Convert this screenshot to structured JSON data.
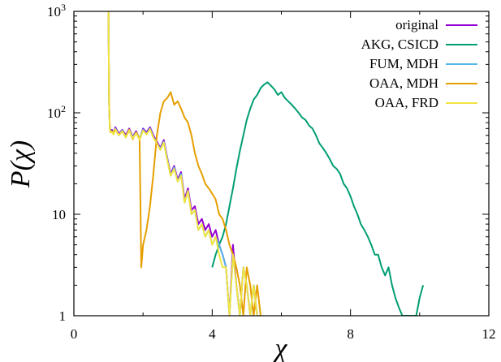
{
  "chart_data": {
    "type": "line",
    "xlabel": "χ",
    "ylabel": "P(χ)",
    "xscale": "linear",
    "yscale": "log",
    "xlim": [
      0,
      12
    ],
    "ylim": [
      1,
      1000
    ],
    "xticks": [
      0,
      4,
      8,
      12
    ],
    "xtick_labels": [
      "0",
      "4",
      "8",
      "12"
    ],
    "yticks": [
      1,
      10,
      100,
      1000
    ],
    "ytick_labels": [
      "1",
      "10",
      "10²",
      "10³"
    ],
    "grid": false,
    "legend": "top-right",
    "series": [
      {
        "name": "original",
        "color": "#9400D3",
        "x": [
          1.0,
          1.02,
          1.04,
          1.06,
          1.1,
          1.15,
          1.2,
          1.3,
          1.4,
          1.5,
          1.6,
          1.7,
          1.8,
          1.9,
          2.0,
          2.1,
          2.2,
          2.3,
          2.4,
          2.5,
          2.6,
          2.7,
          2.8,
          2.9,
          3.0,
          3.1,
          3.2,
          3.3,
          3.4,
          3.5,
          3.6,
          3.7,
          3.8,
          3.9,
          4.0,
          4.1,
          4.2,
          4.3,
          4.4,
          4.5,
          4.6,
          4.7,
          4.8,
          4.9,
          5.0,
          5.1,
          5.2,
          5.3,
          5.4
        ],
        "y": [
          1000,
          120,
          70,
          65,
          68,
          63,
          72,
          62,
          68,
          60,
          70,
          58,
          66,
          55,
          70,
          64,
          72,
          60,
          52,
          45,
          54,
          36,
          25,
          30,
          22,
          26,
          14,
          18,
          11,
          12,
          8,
          9,
          7,
          8,
          6,
          7,
          5,
          4,
          3,
          1,
          5,
          2,
          1,
          3,
          2,
          1,
          2,
          1,
          1
        ]
      },
      {
        "name": "AKG, CSICD",
        "color": "#009E73",
        "x": [
          4.0,
          4.1,
          4.2,
          4.3,
          4.4,
          4.5,
          4.6,
          4.7,
          4.8,
          4.9,
          5.0,
          5.1,
          5.2,
          5.3,
          5.4,
          5.5,
          5.6,
          5.7,
          5.8,
          5.9,
          6.0,
          6.1,
          6.2,
          6.3,
          6.4,
          6.5,
          6.6,
          6.7,
          6.8,
          6.9,
          7.0,
          7.1,
          7.2,
          7.3,
          7.4,
          7.5,
          7.6,
          7.7,
          7.8,
          7.9,
          8.0,
          8.1,
          8.2,
          8.3,
          8.4,
          8.5,
          8.6,
          8.7,
          8.8,
          8.9,
          9.0,
          9.1,
          9.2,
          9.3,
          9.4,
          9.5,
          9.6,
          9.7,
          9.8,
          9.9,
          10.0,
          10.1
        ],
        "y": [
          3,
          4,
          5,
          6,
          8,
          12,
          18,
          28,
          42,
          60,
          85,
          110,
          135,
          150,
          175,
          190,
          200,
          185,
          170,
          150,
          160,
          140,
          130,
          120,
          110,
          100,
          90,
          85,
          75,
          70,
          60,
          50,
          45,
          40,
          35,
          30,
          28,
          25,
          20,
          18,
          15,
          12,
          10,
          8,
          7,
          6,
          5,
          4,
          4,
          3,
          2.5,
          3,
          2,
          1.5,
          1.2,
          1,
          1,
          1,
          1,
          1,
          1.5,
          2
        ]
      },
      {
        "name": "FUM, MDH",
        "color": "#56B4E9",
        "x": [
          1.0,
          1.02,
          1.04,
          1.06,
          1.1,
          1.15,
          1.2,
          1.3,
          1.4,
          1.5,
          1.6,
          1.7,
          1.8,
          1.9,
          2.0,
          2.1,
          2.2,
          2.3,
          2.4,
          2.5,
          2.6,
          2.7,
          2.8,
          2.9,
          3.0,
          3.1,
          3.2,
          3.3,
          3.4,
          3.5,
          3.6,
          3.7,
          3.8,
          3.9,
          4.0,
          4.1,
          4.2,
          4.3,
          4.4,
          4.5,
          4.6,
          4.7,
          4.8,
          4.9,
          5.0,
          5.1,
          5.2,
          5.3,
          5.4
        ],
        "y": [
          1000,
          120,
          68,
          66,
          66,
          62,
          70,
          60,
          67,
          58,
          68,
          57,
          64,
          56,
          68,
          62,
          70,
          58,
          50,
          44,
          52,
          35,
          24,
          29,
          21,
          25,
          13,
          17,
          10,
          11,
          7,
          8,
          6,
          7,
          5,
          6,
          5,
          4,
          3,
          1,
          4,
          2,
          1,
          3,
          2,
          1,
          2,
          1,
          1
        ]
      },
      {
        "name": "OAA, MDH",
        "color": "#E69F00",
        "x": [
          1.0,
          1.02,
          1.04,
          1.06,
          1.1,
          1.2,
          1.3,
          1.4,
          1.5,
          1.6,
          1.7,
          1.8,
          1.9,
          1.95,
          2.0,
          2.1,
          2.2,
          2.3,
          2.4,
          2.5,
          2.6,
          2.7,
          2.8,
          2.9,
          3.0,
          3.1,
          3.2,
          3.3,
          3.4,
          3.5,
          3.6,
          3.7,
          3.8,
          3.9,
          4.0,
          4.1,
          4.2,
          4.3,
          4.4,
          4.5,
          4.6,
          4.7,
          4.8,
          4.9,
          5.0,
          5.1,
          5.2,
          5.3,
          5.4
        ],
        "y": [
          1000,
          120,
          70,
          66,
          64,
          68,
          60,
          66,
          58,
          68,
          55,
          64,
          56,
          3,
          5,
          7,
          12,
          25,
          60,
          100,
          130,
          140,
          160,
          120,
          130,
          110,
          90,
          80,
          60,
          40,
          30,
          25,
          20,
          18,
          16,
          14,
          10,
          9,
          7,
          5,
          4,
          3,
          2,
          1,
          3,
          2,
          1,
          2,
          1
        ]
      },
      {
        "name": "OAA, FRD",
        "color": "#F0E442",
        "x": [
          1.0,
          1.02,
          1.04,
          1.06,
          1.1,
          1.15,
          1.2,
          1.3,
          1.4,
          1.5,
          1.6,
          1.7,
          1.8,
          1.9,
          2.0,
          2.1,
          2.2,
          2.3,
          2.4,
          2.5,
          2.6,
          2.7,
          2.8,
          2.9,
          3.0,
          3.1,
          3.2,
          3.3,
          3.4,
          3.5,
          3.6,
          3.7,
          3.8,
          3.9,
          4.0,
          4.1,
          4.2,
          4.3,
          4.4,
          4.5,
          4.6,
          4.7,
          4.8,
          4.9,
          5.0,
          5.1,
          5.2,
          5.3,
          5.4
        ],
        "y": [
          1000,
          118,
          67,
          64,
          65,
          61,
          69,
          60,
          66,
          57,
          67,
          56,
          63,
          54,
          67,
          61,
          69,
          57,
          50,
          43,
          51,
          34,
          24,
          28,
          21,
          24,
          13,
          17,
          10,
          11,
          7,
          8,
          6,
          7,
          5,
          6,
          4,
          3,
          3,
          1,
          4,
          2,
          1,
          3,
          2,
          1,
          2,
          1,
          1
        ]
      }
    ]
  }
}
